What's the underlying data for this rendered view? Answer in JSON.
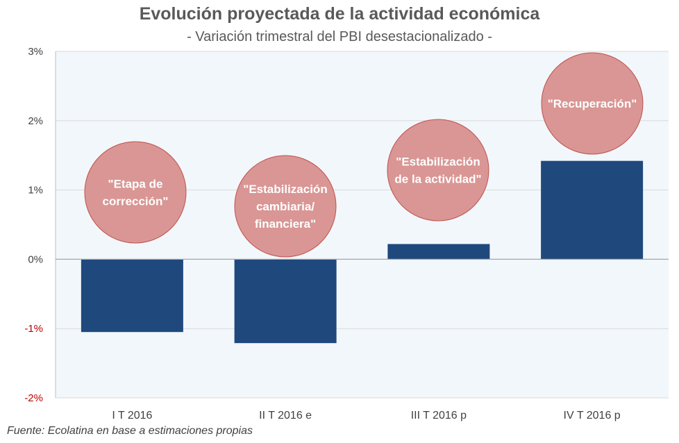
{
  "chart_data": {
    "type": "bar",
    "title": "Evolución proyectada de la actividad económica",
    "subtitle": "- Variación trimestral del PBI desestacionalizado -",
    "categories": [
      "I T 2016",
      "II T 2016 e",
      "III T 2016 p",
      "IV T 2016 p"
    ],
    "values": [
      -1.05,
      -1.21,
      0.22,
      1.42
    ],
    "unit": "%",
    "ylim": [
      -2,
      3
    ],
    "yticks": [
      {
        "value": 3,
        "label": "3%"
      },
      {
        "value": 2,
        "label": "2%"
      },
      {
        "value": 1,
        "label": "1%"
      },
      {
        "value": 0,
        "label": "0%"
      },
      {
        "value": -1,
        "label": "-1%"
      },
      {
        "value": -2,
        "label": "-2%"
      }
    ],
    "annotations": [
      {
        "lines": [
          "\"Etapa de",
          "corrección\""
        ]
      },
      {
        "lines": [
          "\"Estabilización",
          "cambiaria/",
          "financiera\""
        ]
      },
      {
        "lines": [
          "\"Estabilización",
          "de la actividad\""
        ]
      },
      {
        "lines": [
          "\"Recuperación\""
        ]
      }
    ],
    "grid": true,
    "legend": "none",
    "colors": {
      "bar": "#1f497d",
      "bubble": "#d99694",
      "bubble_border": "#c0504d",
      "plot_bg": "#f2f7fb",
      "negative_tick": "#c00000",
      "tick": "#404040"
    }
  },
  "source": "Fuente: Ecolatina en base a estimaciones propias"
}
